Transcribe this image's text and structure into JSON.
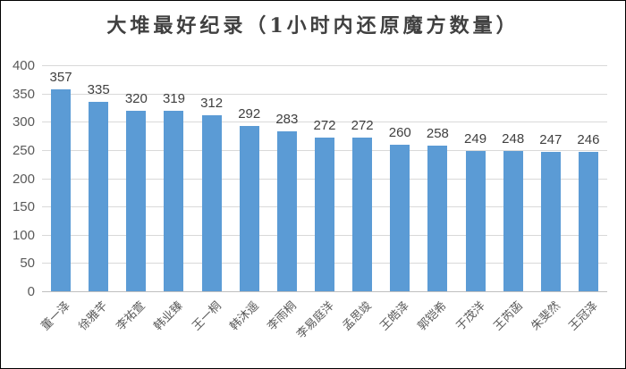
{
  "chart_data": {
    "type": "bar",
    "title": "大堆最好纪录（1小时内还原魔方数量）",
    "categories": [
      "董一泽",
      "徐雅芊",
      "李祐萱",
      "韩业臻",
      "王一桐",
      "韩沐遥",
      "李雨桐",
      "李易庭洋",
      "孟思竣",
      "王皓泽",
      "郭铠希",
      "于茂洋",
      "王芮菡",
      "朱斐然",
      "王冠泽"
    ],
    "values": [
      357,
      335,
      320,
      319,
      312,
      292,
      283,
      272,
      272,
      260,
      258,
      249,
      248,
      247,
      246
    ],
    "xlabel": "",
    "ylabel": "",
    "ylim": [
      0,
      400
    ],
    "yticks": [
      400,
      350,
      300,
      250,
      200,
      150,
      100,
      50,
      0
    ],
    "grid": "horizontal",
    "legend": "none",
    "data_labels": "above-bars",
    "colors": {
      "bar": "#5b9bd5",
      "gridline": "#d9d9d9",
      "axis_line": "#bfbfbf",
      "title_text": "#404040",
      "value_label_text": "#404040",
      "tick_text": "#595959",
      "background": "#ffffff"
    }
  }
}
